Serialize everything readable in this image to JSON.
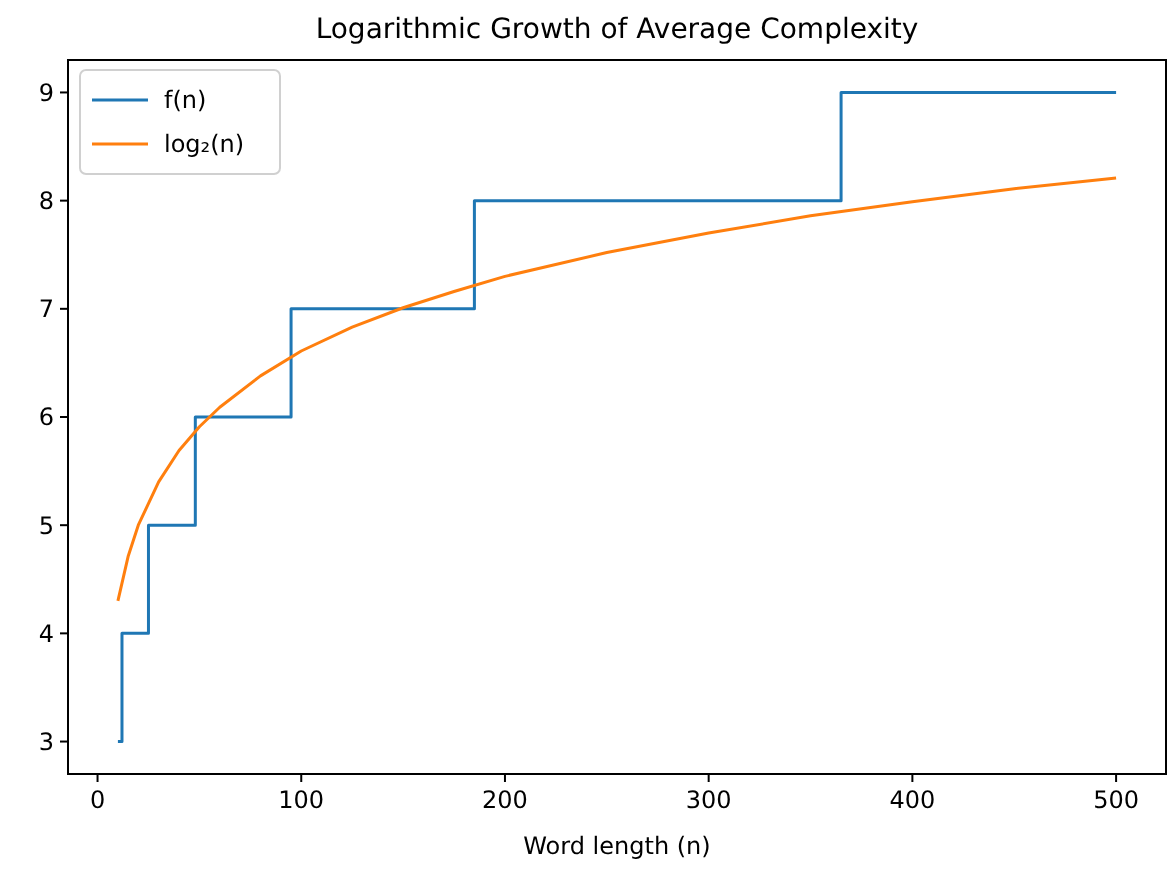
{
  "chart_data": {
    "type": "line",
    "title": "Logarithmic Growth of Average Complexity",
    "xlabel": "Word length (n)",
    "xlim": [
      -14.5,
      524.5
    ],
    "xticks": [
      0,
      100,
      200,
      300,
      400,
      500
    ],
    "ylim": [
      2.7,
      9.3
    ],
    "yticks": [
      3,
      4,
      5,
      6,
      7,
      8,
      9
    ],
    "grid": false,
    "legend": "top left",
    "series": [
      {
        "name": "f(n)",
        "type": "step",
        "color": "#1f77b4",
        "x": [
          10,
          12,
          25,
          48,
          95,
          185,
          365,
          500
        ],
        "values": [
          3,
          4,
          5,
          6,
          7,
          8,
          9,
          9
        ]
      },
      {
        "name": "log₂(n)",
        "color": "#ff7f0e",
        "x": [
          10,
          15,
          20,
          30,
          40,
          50,
          60,
          80,
          100,
          125,
          150,
          175,
          200,
          250,
          300,
          350,
          400,
          450,
          500
        ],
        "values": [
          4.3,
          4.71,
          5.0,
          5.4,
          5.69,
          5.91,
          6.09,
          6.38,
          6.61,
          6.83,
          7.01,
          7.16,
          7.3,
          7.52,
          7.7,
          7.86,
          7.99,
          8.11,
          8.21
        ]
      }
    ]
  }
}
